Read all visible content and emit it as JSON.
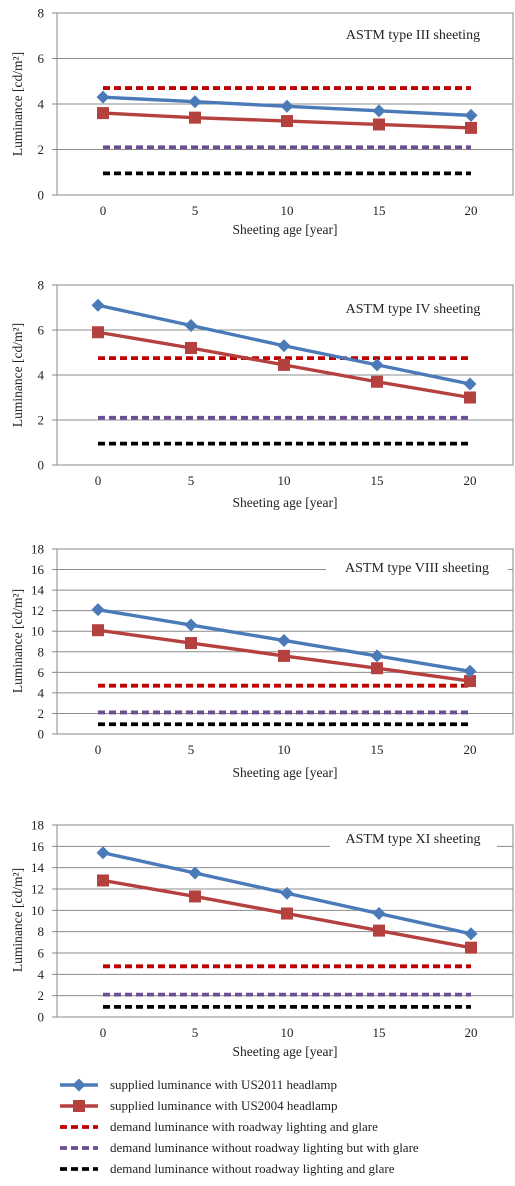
{
  "chart_data": [
    {
      "type": "line",
      "title": "ASTM type III sheeting",
      "xlabel": "Sheeting age [year]",
      "ylabel": "Luminance [cd/m²]",
      "x": [
        0,
        5,
        10,
        15,
        20
      ],
      "ylim": [
        0,
        8
      ],
      "yticks": [
        0,
        2,
        4,
        6,
        8
      ],
      "grid": true,
      "series": [
        {
          "name": "supplied luminance with US2011 headlamp",
          "values": [
            4.3,
            4.1,
            3.9,
            3.7,
            3.5
          ]
        },
        {
          "name": "supplied luminance with US2004 headlamp",
          "values": [
            3.6,
            3.4,
            3.25,
            3.1,
            2.95
          ]
        },
        {
          "name": "demand luminance with roadway lighting and glare",
          "values": [
            4.7,
            4.7,
            4.7,
            4.7,
            4.7
          ]
        },
        {
          "name": "demand luminance without roadway lighting but with glare",
          "values": [
            2.1,
            2.1,
            2.1,
            2.1,
            2.1
          ]
        },
        {
          "name": "demand luminance without roadway lighting and glare",
          "values": [
            0.95,
            0.95,
            0.95,
            0.95,
            0.95
          ]
        }
      ]
    },
    {
      "type": "line",
      "title": "ASTM type IV sheeting",
      "xlabel": "Sheeting age [year]",
      "ylabel": "Luminance [cd/m²]",
      "x": [
        0,
        5,
        10,
        15,
        20
      ],
      "ylim": [
        0,
        8
      ],
      "yticks": [
        0,
        2,
        4,
        6,
        8
      ],
      "grid": true,
      "series": [
        {
          "name": "supplied luminance with US2011 headlamp",
          "values": [
            7.1,
            6.2,
            5.3,
            4.45,
            3.6
          ]
        },
        {
          "name": "supplied luminance with US2004 headlamp",
          "values": [
            5.9,
            5.2,
            4.45,
            3.7,
            3.0
          ]
        },
        {
          "name": "demand luminance with roadway lighting and glare",
          "values": [
            4.75,
            4.75,
            4.75,
            4.75,
            4.75
          ]
        },
        {
          "name": "demand luminance without roadway lighting but with glare",
          "values": [
            2.1,
            2.1,
            2.1,
            2.1,
            2.1
          ]
        },
        {
          "name": "demand luminance without roadway lighting and glare",
          "values": [
            0.95,
            0.95,
            0.95,
            0.95,
            0.95
          ]
        }
      ]
    },
    {
      "type": "line",
      "title": "ASTM type VIII sheeting",
      "xlabel": "Sheeting age [year]",
      "ylabel": "Luminance [cd/m²]",
      "x": [
        0,
        5,
        10,
        15,
        20
      ],
      "ylim": [
        0,
        18
      ],
      "yticks": [
        0,
        2,
        4,
        6,
        8,
        10,
        12,
        14,
        16,
        18
      ],
      "grid": true,
      "series": [
        {
          "name": "supplied luminance with US2011 headlamp",
          "values": [
            12.1,
            10.6,
            9.1,
            7.6,
            6.1
          ]
        },
        {
          "name": "supplied luminance with US2004 headlamp",
          "values": [
            10.1,
            8.85,
            7.6,
            6.4,
            5.15
          ]
        },
        {
          "name": "demand luminance with roadway lighting and glare",
          "values": [
            4.7,
            4.7,
            4.7,
            4.7,
            4.7
          ]
        },
        {
          "name": "demand luminance without roadway lighting but with glare",
          "values": [
            2.1,
            2.1,
            2.1,
            2.1,
            2.1
          ]
        },
        {
          "name": "demand luminance without roadway lighting and glare",
          "values": [
            0.95,
            0.95,
            0.95,
            0.95,
            0.95
          ]
        }
      ]
    },
    {
      "type": "line",
      "title": "ASTM type XI sheeting",
      "xlabel": "Sheeting age [year]",
      "ylabel": "Luminance [cd/m²]",
      "x": [
        0,
        5,
        10,
        15,
        20
      ],
      "ylim": [
        0,
        18
      ],
      "yticks": [
        0,
        2,
        4,
        6,
        8,
        10,
        12,
        14,
        16,
        18
      ],
      "grid": true,
      "series": [
        {
          "name": "supplied luminance with US2011 headlamp",
          "values": [
            15.4,
            13.5,
            11.6,
            9.7,
            7.8
          ]
        },
        {
          "name": "supplied luminance with US2004 headlamp",
          "values": [
            12.8,
            11.3,
            9.7,
            8.1,
            6.5
          ]
        },
        {
          "name": "demand luminance with roadway lighting and glare",
          "values": [
            4.75,
            4.75,
            4.75,
            4.75,
            4.75
          ]
        },
        {
          "name": "demand luminance without roadway lighting but with glare",
          "values": [
            2.1,
            2.1,
            2.1,
            2.1,
            2.1
          ]
        },
        {
          "name": "demand luminance without roadway lighting and glare",
          "values": [
            0.95,
            0.95,
            0.95,
            0.95,
            0.95
          ]
        }
      ]
    }
  ],
  "series_styles": [
    {
      "color": "#4a7ab8",
      "line": "solid",
      "marker": "diamond"
    },
    {
      "color": "#b5413f",
      "line": "solid",
      "marker": "square"
    },
    {
      "color": "#c00000",
      "line": "dashed",
      "marker": "none"
    },
    {
      "color": "#6b4f92",
      "line": "dashed",
      "marker": "none"
    },
    {
      "color": "#000000",
      "line": "dashed",
      "marker": "none"
    }
  ],
  "legend": {
    "placement": "bottom",
    "items": [
      "supplied luminance with US2011 headlamp",
      "supplied luminance with US2004 headlamp",
      "demand luminance with roadway lighting and glare",
      "demand luminance without roadway lighting but with glare",
      "demand luminance without roadway lighting and glare"
    ]
  }
}
